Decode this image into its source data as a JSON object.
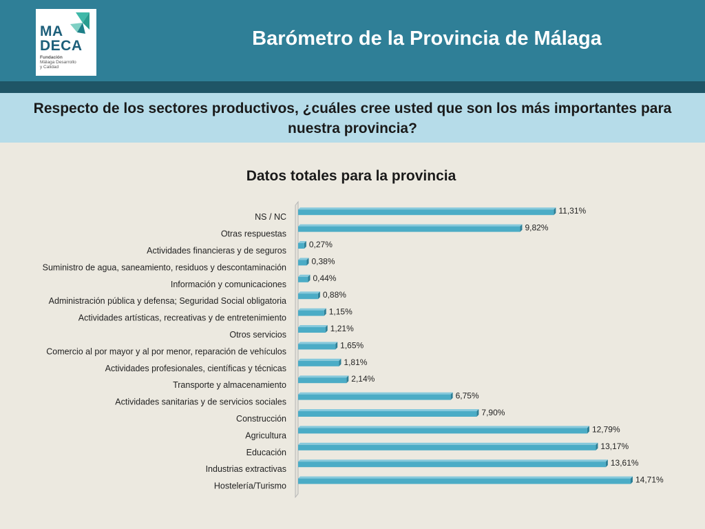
{
  "header": {
    "title": "Barómetro de la Provincia de Málaga",
    "logo": {
      "line1": "MA",
      "line2": "DECA",
      "sub1": "Fundación",
      "sub2": "Málaga Desarrollo",
      "sub3": "y Calidad"
    }
  },
  "question": "Respecto de los sectores productivos, ¿cuáles cree usted que son los más importantes para nuestra provincia?",
  "chart_data": {
    "type": "bar",
    "orientation": "horizontal",
    "title": "Datos totales para la provincia",
    "categories": [
      "NS / NC",
      "Otras respuestas",
      "Actividades financieras y de seguros",
      "Suministro de agua, saneamiento, residuos y descontaminación",
      "Información y comunicaciones",
      "Administración pública y defensa; Seguridad Social obligatoria",
      "Actividades artísticas, recreativas y de entretenimiento",
      "Otros servicios",
      "Comercio al por mayor y al por menor, reparación de vehículos",
      "Actividades profesionales, científicas y técnicas",
      "Transporte y almacenamiento",
      "Actividades sanitarias y de servicios sociales",
      "Construcción",
      "Agricultura",
      "Educación",
      "Industrias extractivas",
      "Hostelería/Turismo"
    ],
    "values": [
      11.31,
      9.82,
      0.27,
      0.38,
      0.44,
      0.88,
      1.15,
      1.21,
      1.65,
      1.81,
      2.14,
      6.75,
      7.9,
      12.79,
      13.17,
      13.61,
      14.71
    ],
    "data_labels": [
      "11,31%",
      "9,82%",
      "0,27%",
      "0,38%",
      "0,44%",
      "0,88%",
      "1,15%",
      "1,21%",
      "1,65%",
      "1,81%",
      "2,14%",
      "6,75%",
      "7,90%",
      "12,79%",
      "13,17%",
      "13,61%",
      "14,71%"
    ],
    "unit": "%",
    "bar_color": "#4bacc6",
    "xlim": [
      0,
      14.71
    ]
  }
}
